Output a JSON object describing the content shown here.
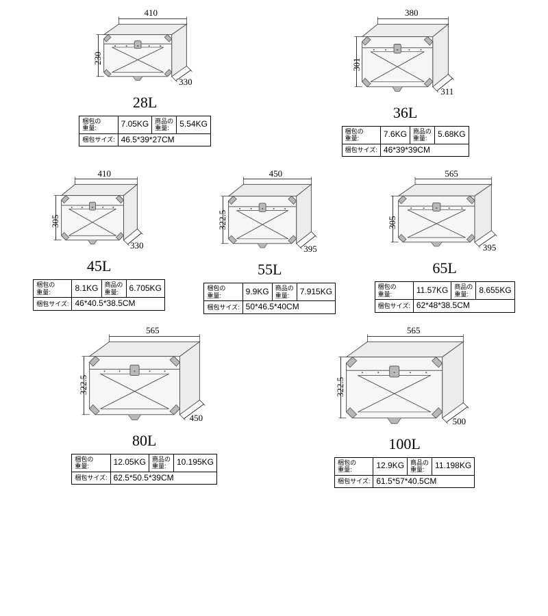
{
  "labels": {
    "pack_weight": "梱包の\n重量:",
    "prod_weight": "商品の\n重量:",
    "pack_size": "梱包サイズ:"
  },
  "boxStyle": {
    "stroke": "#555",
    "fill": "#f6f6f6",
    "face": "#ececec",
    "latch": "#b8b8b8"
  },
  "items": [
    {
      "cap": "28L",
      "w": "410",
      "h": "230",
      "d": "330",
      "pw": "7.05KG",
      "iw": "5.54KG",
      "ps": "46.5*39*27CM",
      "sw": 160,
      "sh": 110
    },
    {
      "cap": "36L",
      "w": "380",
      "h": "301",
      "d": "311",
      "pw": "7.6KG",
      "iw": "5.68KG",
      "ps": "46*39*39CM",
      "sw": 165,
      "sh": 125
    },
    {
      "cap": "45L",
      "w": "410",
      "h": "305",
      "d": "330",
      "pw": "8.1KG",
      "iw": "6.705KG",
      "ps": "46*40.5*38.5CM",
      "sw": 150,
      "sh": 115
    },
    {
      "cap": "55L",
      "w": "450",
      "h": "322.5",
      "d": "395",
      "pw": "9.9KG",
      "iw": "7.915KG",
      "ps": "50*46.5*40CM",
      "sw": 160,
      "sh": 120
    },
    {
      "cap": "65L",
      "w": "565",
      "h": "305",
      "d": "395",
      "pw": "11.57KG",
      "iw": "8.655KG",
      "ps": "62*48*38.5CM",
      "sw": 175,
      "sh": 118
    },
    {
      "cap": "80L",
      "w": "565",
      "h": "322.5",
      "d": "450",
      "pw": "12.05KG",
      "iw": "10.195KG",
      "ps": "62.5*50.5*39CM",
      "sw": 200,
      "sh": 140
    },
    {
      "cap": "100L",
      "w": "565",
      "h": "322.5",
      "d": "500",
      "pw": "12.9KG",
      "iw": "11.198KG",
      "ps": "61.5*57*40.5CM",
      "sw": 210,
      "sh": 145
    }
  ],
  "layout": {
    "rows": [
      [
        0,
        1
      ],
      [
        2,
        3,
        4
      ],
      [
        5,
        6
      ]
    ]
  }
}
